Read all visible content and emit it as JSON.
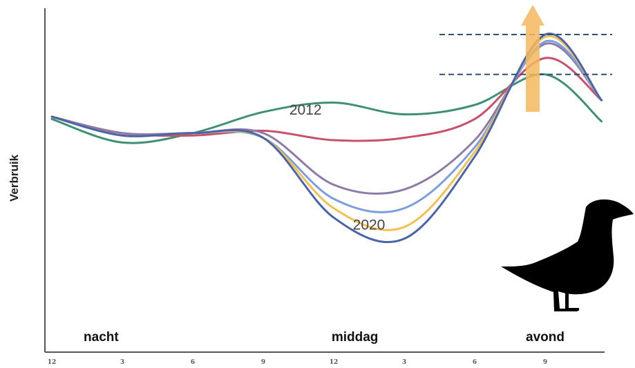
{
  "chart_data": {
    "type": "line",
    "title": "",
    "xlabel": "",
    "ylabel": "Verbruik",
    "x_tick_labels": [
      "12",
      "3",
      "6",
      "9",
      "12",
      "3",
      "6",
      "9"
    ],
    "x": [
      0,
      1,
      2,
      3,
      4,
      5,
      6,
      7,
      7.8
    ],
    "ylim": [
      0,
      100
    ],
    "grid": false,
    "legend": "none",
    "periods": [
      {
        "label": "nacht",
        "x": 0.7
      },
      {
        "label": "middag",
        "x": 4.3
      },
      {
        "label": "avond",
        "x": 7.0
      }
    ],
    "annotations": [
      {
        "text": "2012",
        "x": 3.6,
        "y": 68
      },
      {
        "text": "2020",
        "x": 4.5,
        "y": 19
      }
    ],
    "series": [
      {
        "color": "#3f8f74",
        "values": [
          64,
          54,
          58,
          67,
          71,
          66,
          70,
          83,
          63
        ]
      },
      {
        "color": "#c7506a",
        "values": [
          65,
          58,
          57,
          59,
          55,
          56,
          64,
          90,
          72
        ]
      },
      {
        "color": "#8e7aa6",
        "values": [
          65,
          58,
          58,
          58,
          36,
          34,
          55,
          96,
          72
        ]
      },
      {
        "color": "#7b9ee0",
        "values": [
          65,
          57,
          58,
          56,
          30,
          26,
          52,
          97,
          72
        ]
      },
      {
        "color": "#f2c050",
        "values": [
          65,
          57,
          58,
          56,
          26,
          18,
          50,
          99,
          72
        ]
      },
      {
        "color": "#4a64a8",
        "values": [
          65,
          57,
          58,
          56,
          22,
          13,
          48,
          100,
          72
        ]
      }
    ],
    "reference_lines": [
      {
        "color": "#2c4f7a",
        "y": 100
      },
      {
        "color": "#2c4f7a",
        "y": 83
      }
    ],
    "arrow_color": "#f5b75e",
    "silhouette": "duck-icon"
  }
}
